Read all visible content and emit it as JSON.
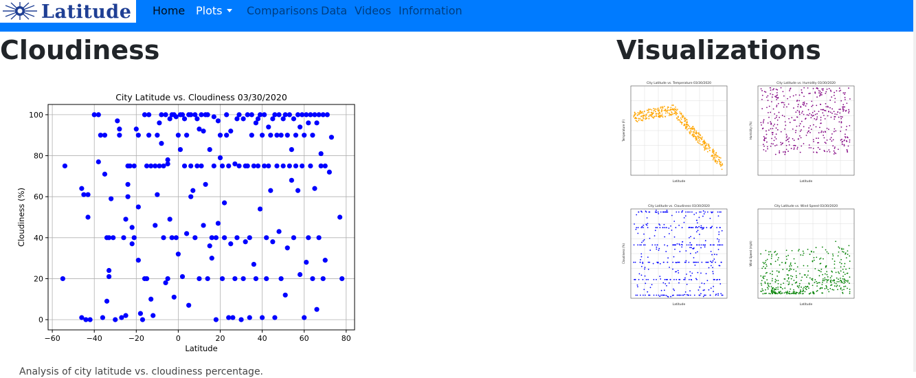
{
  "brand": {
    "logo_text": "Latitude"
  },
  "nav": {
    "items": [
      {
        "label": "Home",
        "active": true
      },
      {
        "label": "Plots",
        "dropdown": true
      },
      {
        "label": "Comparisons"
      },
      {
        "label": "Data"
      },
      {
        "label": "Videos"
      },
      {
        "label": "Information"
      }
    ]
  },
  "main": {
    "heading": "Cloudiness",
    "description": "Analysis of city latitude vs. cloudiness percentage."
  },
  "sidebar": {
    "heading": "Visualizations",
    "thumbnails": [
      {
        "title": "City Latitude vs. Temperature 03/30/2020",
        "ylabel": "Temperature (F)",
        "xlabel": "Latitude",
        "color": "#ffa500"
      },
      {
        "title": "City Latitude vs. Humidity 03/30/2020",
        "ylabel": "Humidity (%)",
        "xlabel": "Latitude",
        "color": "#800080"
      },
      {
        "title": "City Latitude vs. Cloudiness 03/30/2020",
        "ylabel": "Cloudiness (%)",
        "xlabel": "Latitude",
        "color": "#0000ff"
      },
      {
        "title": "City Latitude vs. Wind Speed 03/30/2020",
        "ylabel": "Wind Speed (mph)",
        "xlabel": "Latitude",
        "color": "#008000"
      }
    ]
  },
  "chart_data": {
    "type": "scatter",
    "title": "City Latitude vs. Cloudiness 03/30/2020",
    "xlabel": "Latitude",
    "ylabel": "Cloudiness (%)",
    "xlim": [
      -62,
      84
    ],
    "ylim": [
      -5,
      105
    ],
    "xticks": [
      -60,
      -40,
      -20,
      0,
      20,
      40,
      60,
      80
    ],
    "yticks": [
      0,
      20,
      40,
      60,
      80,
      100
    ],
    "grid": true,
    "color": "#0000ff",
    "points": [
      [
        -55,
        20
      ],
      [
        -54,
        75
      ],
      [
        -46,
        64
      ],
      [
        -46,
        1
      ],
      [
        -45,
        61
      ],
      [
        -44,
        0
      ],
      [
        -43,
        61
      ],
      [
        -43,
        50
      ],
      [
        -42,
        0
      ],
      [
        -40,
        100
      ],
      [
        -38,
        100
      ],
      [
        -38,
        77
      ],
      [
        -37,
        90
      ],
      [
        -36,
        1
      ],
      [
        -35,
        71
      ],
      [
        -35,
        90
      ],
      [
        -34,
        40
      ],
      [
        -34,
        9
      ],
      [
        -33,
        40
      ],
      [
        -33,
        21
      ],
      [
        -33,
        24
      ],
      [
        -32,
        59
      ],
      [
        -31,
        40
      ],
      [
        -30,
        0
      ],
      [
        -29,
        97
      ],
      [
        -28,
        90
      ],
      [
        -28,
        93
      ],
      [
        -27,
        1
      ],
      [
        -26,
        40
      ],
      [
        -25,
        49
      ],
      [
        -25,
        2
      ],
      [
        -24,
        60
      ],
      [
        -24,
        66
      ],
      [
        -24,
        75
      ],
      [
        -23,
        75
      ],
      [
        -22,
        45
      ],
      [
        -22,
        37
      ],
      [
        -21,
        75
      ],
      [
        -21,
        40
      ],
      [
        -20,
        93
      ],
      [
        -19,
        90
      ],
      [
        -19,
        55
      ],
      [
        -19,
        29
      ],
      [
        -18,
        3
      ],
      [
        -17,
        0
      ],
      [
        -16,
        100
      ],
      [
        -16,
        20
      ],
      [
        -15,
        75
      ],
      [
        -15,
        20
      ],
      [
        -14,
        100
      ],
      [
        -14,
        90
      ],
      [
        -13,
        75
      ],
      [
        -13,
        10
      ],
      [
        -12,
        2
      ],
      [
        -11,
        75
      ],
      [
        -11,
        46
      ],
      [
        -10,
        90
      ],
      [
        -10,
        61
      ],
      [
        -9,
        96
      ],
      [
        -9,
        75
      ],
      [
        -8,
        100
      ],
      [
        -8,
        86
      ],
      [
        -7,
        75
      ],
      [
        -7,
        40
      ],
      [
        -6,
        100
      ],
      [
        -6,
        18
      ],
      [
        -5,
        76
      ],
      [
        -5,
        78
      ],
      [
        -5,
        20
      ],
      [
        -4,
        98
      ],
      [
        -4,
        49
      ],
      [
        -3,
        100
      ],
      [
        -3,
        40
      ],
      [
        -2,
        100
      ],
      [
        -2,
        11
      ],
      [
        -1,
        99
      ],
      [
        -1,
        40
      ],
      [
        0,
        90
      ],
      [
        0,
        32
      ],
      [
        1,
        100
      ],
      [
        1,
        83
      ],
      [
        2,
        100
      ],
      [
        2,
        21
      ],
      [
        3,
        98
      ],
      [
        3,
        75
      ],
      [
        4,
        90
      ],
      [
        4,
        42
      ],
      [
        5,
        100
      ],
      [
        5,
        7
      ],
      [
        6,
        100
      ],
      [
        6,
        75
      ],
      [
        6,
        60
      ],
      [
        7,
        63
      ],
      [
        8,
        100
      ],
      [
        8,
        40
      ],
      [
        9,
        98
      ],
      [
        9,
        75
      ],
      [
        10,
        93
      ],
      [
        10,
        20
      ],
      [
        11,
        100
      ],
      [
        11,
        75
      ],
      [
        12,
        92
      ],
      [
        12,
        46
      ],
      [
        13,
        100
      ],
      [
        13,
        66
      ],
      [
        14,
        100
      ],
      [
        14,
        20
      ],
      [
        15,
        83
      ],
      [
        15,
        36
      ],
      [
        16,
        40
      ],
      [
        16,
        30
      ],
      [
        17,
        99
      ],
      [
        17,
        75
      ],
      [
        18,
        40
      ],
      [
        18,
        0
      ],
      [
        19,
        97
      ],
      [
        19,
        47
      ],
      [
        20,
        90
      ],
      [
        20,
        79
      ],
      [
        21,
        75
      ],
      [
        21,
        20
      ],
      [
        22,
        40
      ],
      [
        22,
        57
      ],
      [
        23,
        100
      ],
      [
        23,
        90
      ],
      [
        24,
        75
      ],
      [
        24,
        1
      ],
      [
        25,
        92
      ],
      [
        25,
        37
      ],
      [
        26,
        1
      ],
      [
        27,
        76
      ],
      [
        27,
        20
      ],
      [
        28,
        98
      ],
      [
        28,
        40
      ],
      [
        29,
        100
      ],
      [
        29,
        75
      ],
      [
        30,
        0
      ],
      [
        31,
        98
      ],
      [
        31,
        20
      ],
      [
        32,
        75
      ],
      [
        32,
        38
      ],
      [
        33,
        100
      ],
      [
        33,
        75
      ],
      [
        34,
        40
      ],
      [
        34,
        1
      ],
      [
        35,
        100
      ],
      [
        35,
        90
      ],
      [
        36,
        75
      ],
      [
        36,
        27
      ],
      [
        37,
        96
      ],
      [
        37,
        20
      ],
      [
        38,
        98
      ],
      [
        38,
        75
      ],
      [
        39,
        100
      ],
      [
        39,
        54
      ],
      [
        40,
        90
      ],
      [
        40,
        1
      ],
      [
        41,
        100
      ],
      [
        41,
        75
      ],
      [
        42,
        40
      ],
      [
        42,
        20
      ],
      [
        43,
        94
      ],
      [
        43,
        75
      ],
      [
        44,
        90
      ],
      [
        44,
        63
      ],
      [
        45,
        98
      ],
      [
        45,
        38
      ],
      [
        46,
        100
      ],
      [
        46,
        1
      ],
      [
        47,
        90
      ],
      [
        47,
        75
      ],
      [
        48,
        100
      ],
      [
        48,
        43
      ],
      [
        49,
        90
      ],
      [
        49,
        20
      ],
      [
        50,
        98
      ],
      [
        50,
        75
      ],
      [
        51,
        100
      ],
      [
        51,
        12
      ],
      [
        52,
        90
      ],
      [
        52,
        35
      ],
      [
        53,
        100
      ],
      [
        53,
        75
      ],
      [
        54,
        83
      ],
      [
        54,
        68
      ],
      [
        55,
        98
      ],
      [
        55,
        40
      ],
      [
        56,
        90
      ],
      [
        56,
        75
      ],
      [
        57,
        100
      ],
      [
        57,
        63
      ],
      [
        58,
        94
      ],
      [
        58,
        22
      ],
      [
        59,
        100
      ],
      [
        59,
        75
      ],
      [
        60,
        90
      ],
      [
        60,
        1
      ],
      [
        61,
        100
      ],
      [
        61,
        28
      ],
      [
        62,
        96
      ],
      [
        62,
        40
      ],
      [
        63,
        100
      ],
      [
        63,
        75
      ],
      [
        64,
        90
      ],
      [
        64,
        20
      ],
      [
        65,
        100
      ],
      [
        65,
        64
      ],
      [
        66,
        96
      ],
      [
        66,
        5
      ],
      [
        67,
        100
      ],
      [
        67,
        40
      ],
      [
        68,
        81
      ],
      [
        68,
        75
      ],
      [
        69,
        100
      ],
      [
        69,
        20
      ],
      [
        70,
        75
      ],
      [
        70,
        29
      ],
      [
        71,
        100
      ],
      [
        72,
        72
      ],
      [
        73,
        89
      ],
      [
        77,
        50
      ],
      [
        78,
        20
      ]
    ]
  }
}
